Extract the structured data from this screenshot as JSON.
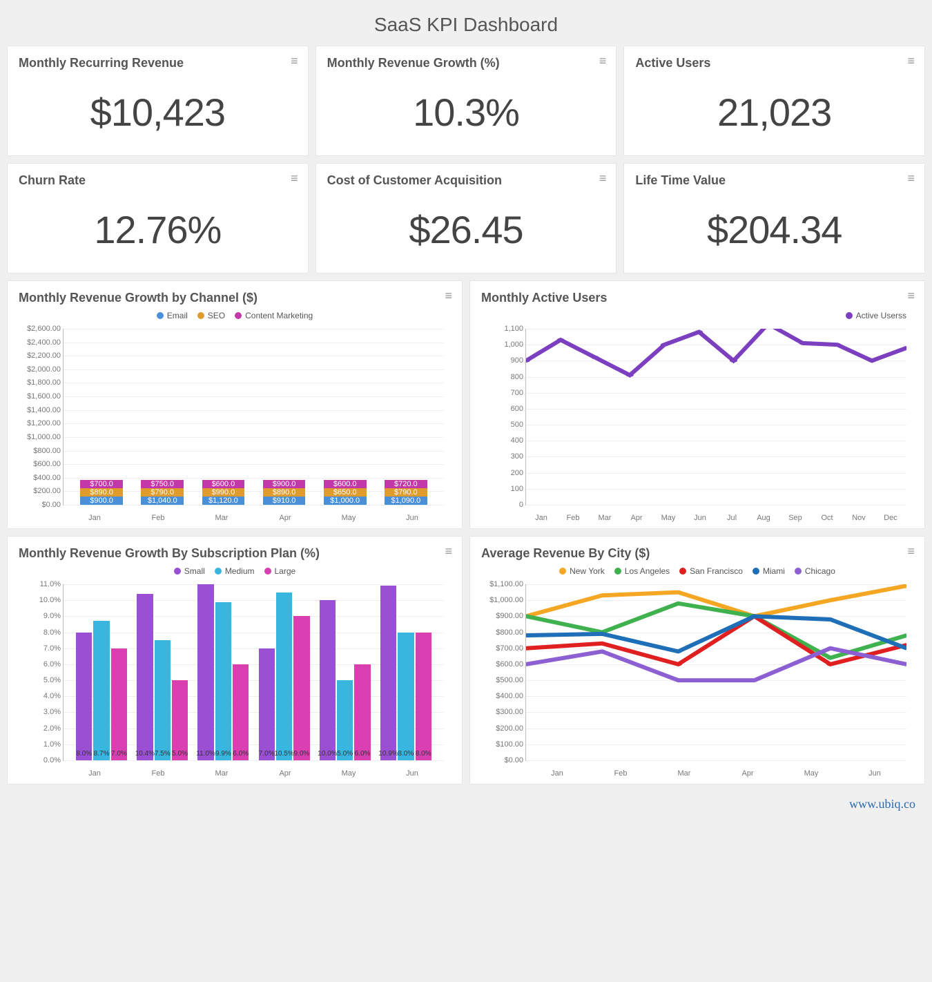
{
  "title": "SaaS KPI Dashboard",
  "watermark": "www.ubiq.co",
  "colors": {
    "card_border": "#e5e5e5",
    "text": "#555555",
    "grid": "#eeeeee",
    "axis": "#bbbbbb"
  },
  "kpis": [
    {
      "label": "Monthly Recurring Revenue",
      "value": "$10,423"
    },
    {
      "label": "Monthly Revenue Growth (%)",
      "value": "10.3%"
    },
    {
      "label": "Active Users",
      "value": "21,023"
    },
    {
      "label": "Churn Rate",
      "value": "12.76%"
    },
    {
      "label": "Cost of Customer Acquisition",
      "value": "$26.45"
    },
    {
      "label": "Life Time Value",
      "value": "$204.34"
    }
  ],
  "stacked_chart": {
    "title": "Monthly Revenue Growth by Channel ($)",
    "type": "stacked-bar",
    "categories": [
      "Jan",
      "Feb",
      "Mar",
      "Apr",
      "May",
      "Jun"
    ],
    "series": [
      {
        "name": "Email",
        "color": "#4a90d9",
        "values": [
          900,
          1040,
          1120,
          910,
          1000,
          1090
        ]
      },
      {
        "name": "SEO",
        "color": "#e09b2d",
        "values": [
          890,
          790,
          990,
          890,
          650,
          790
        ]
      },
      {
        "name": "Content Marketing",
        "color": "#c238a9",
        "values": [
          700,
          750,
          600,
          900,
          600,
          720
        ]
      }
    ],
    "y_max": 2600,
    "y_step": 200,
    "y_prefix": "$",
    "y_suffix": ".00",
    "label_prefix": "$",
    "label_suffix": ".0",
    "bar_width_pct": 70
  },
  "active_users_chart": {
    "title": "Monthly Active Users",
    "type": "line",
    "legend": [
      {
        "name": "Active Userss",
        "color": "#7b3fbf"
      }
    ],
    "categories": [
      "Jan",
      "Feb",
      "Mar",
      "Apr",
      "May",
      "Jun",
      "Jul",
      "Aug",
      "Sep",
      "Oct",
      "Nov",
      "Dec"
    ],
    "series": [
      {
        "name": "Active Userss",
        "color": "#7b3fbf",
        "values": [
          900,
          1030,
          920,
          810,
          1000,
          1080,
          900,
          1130,
          1010,
          1000,
          900,
          980
        ]
      }
    ],
    "y_max": 1100,
    "y_step": 100,
    "y_prefix": "",
    "y_suffix": ""
  },
  "grouped_chart": {
    "title": "Monthly Revenue Growth By Subscription Plan (%)",
    "type": "grouped-bar",
    "categories": [
      "Jan",
      "Feb",
      "Mar",
      "Apr",
      "May",
      "Jun"
    ],
    "series": [
      {
        "name": "Small",
        "color": "#9b4fd3",
        "values": [
          8.0,
          10.4,
          11.0,
          7.0,
          10.0,
          10.9
        ]
      },
      {
        "name": "Medium",
        "color": "#39b6e0",
        "values": [
          8.7,
          7.5,
          9.9,
          10.5,
          5.0,
          8.0
        ]
      },
      {
        "name": "Large",
        "color": "#d93fb0",
        "values": [
          7.0,
          5.0,
          6.0,
          9.0,
          6.0,
          8.0
        ]
      }
    ],
    "y_max": 11,
    "y_step": 1,
    "y_prefix": "",
    "y_suffix": ".0%",
    "label_suffix": "%"
  },
  "city_chart": {
    "title": "Average Revenue By City ($)",
    "type": "multi-line",
    "categories": [
      "Jan",
      "Feb",
      "Mar",
      "Apr",
      "May",
      "Jun"
    ],
    "series": [
      {
        "name": "New York",
        "color": "#f5a623",
        "values": [
          900,
          1030,
          1050,
          900,
          1000,
          1090
        ]
      },
      {
        "name": "Los Angeles",
        "color": "#3fb24f",
        "values": [
          900,
          800,
          980,
          900,
          640,
          780
        ]
      },
      {
        "name": "San Francisco",
        "color": "#e02020",
        "values": [
          700,
          730,
          600,
          900,
          600,
          720
        ]
      },
      {
        "name": "Miami",
        "color": "#1e6fb8",
        "values": [
          780,
          790,
          680,
          900,
          880,
          700
        ]
      },
      {
        "name": "Chicago",
        "color": "#8c5fd3",
        "values": [
          600,
          680,
          500,
          500,
          700,
          600
        ]
      }
    ],
    "y_max": 1100,
    "y_step": 100,
    "y_prefix": "$",
    "y_suffix": ".00"
  }
}
